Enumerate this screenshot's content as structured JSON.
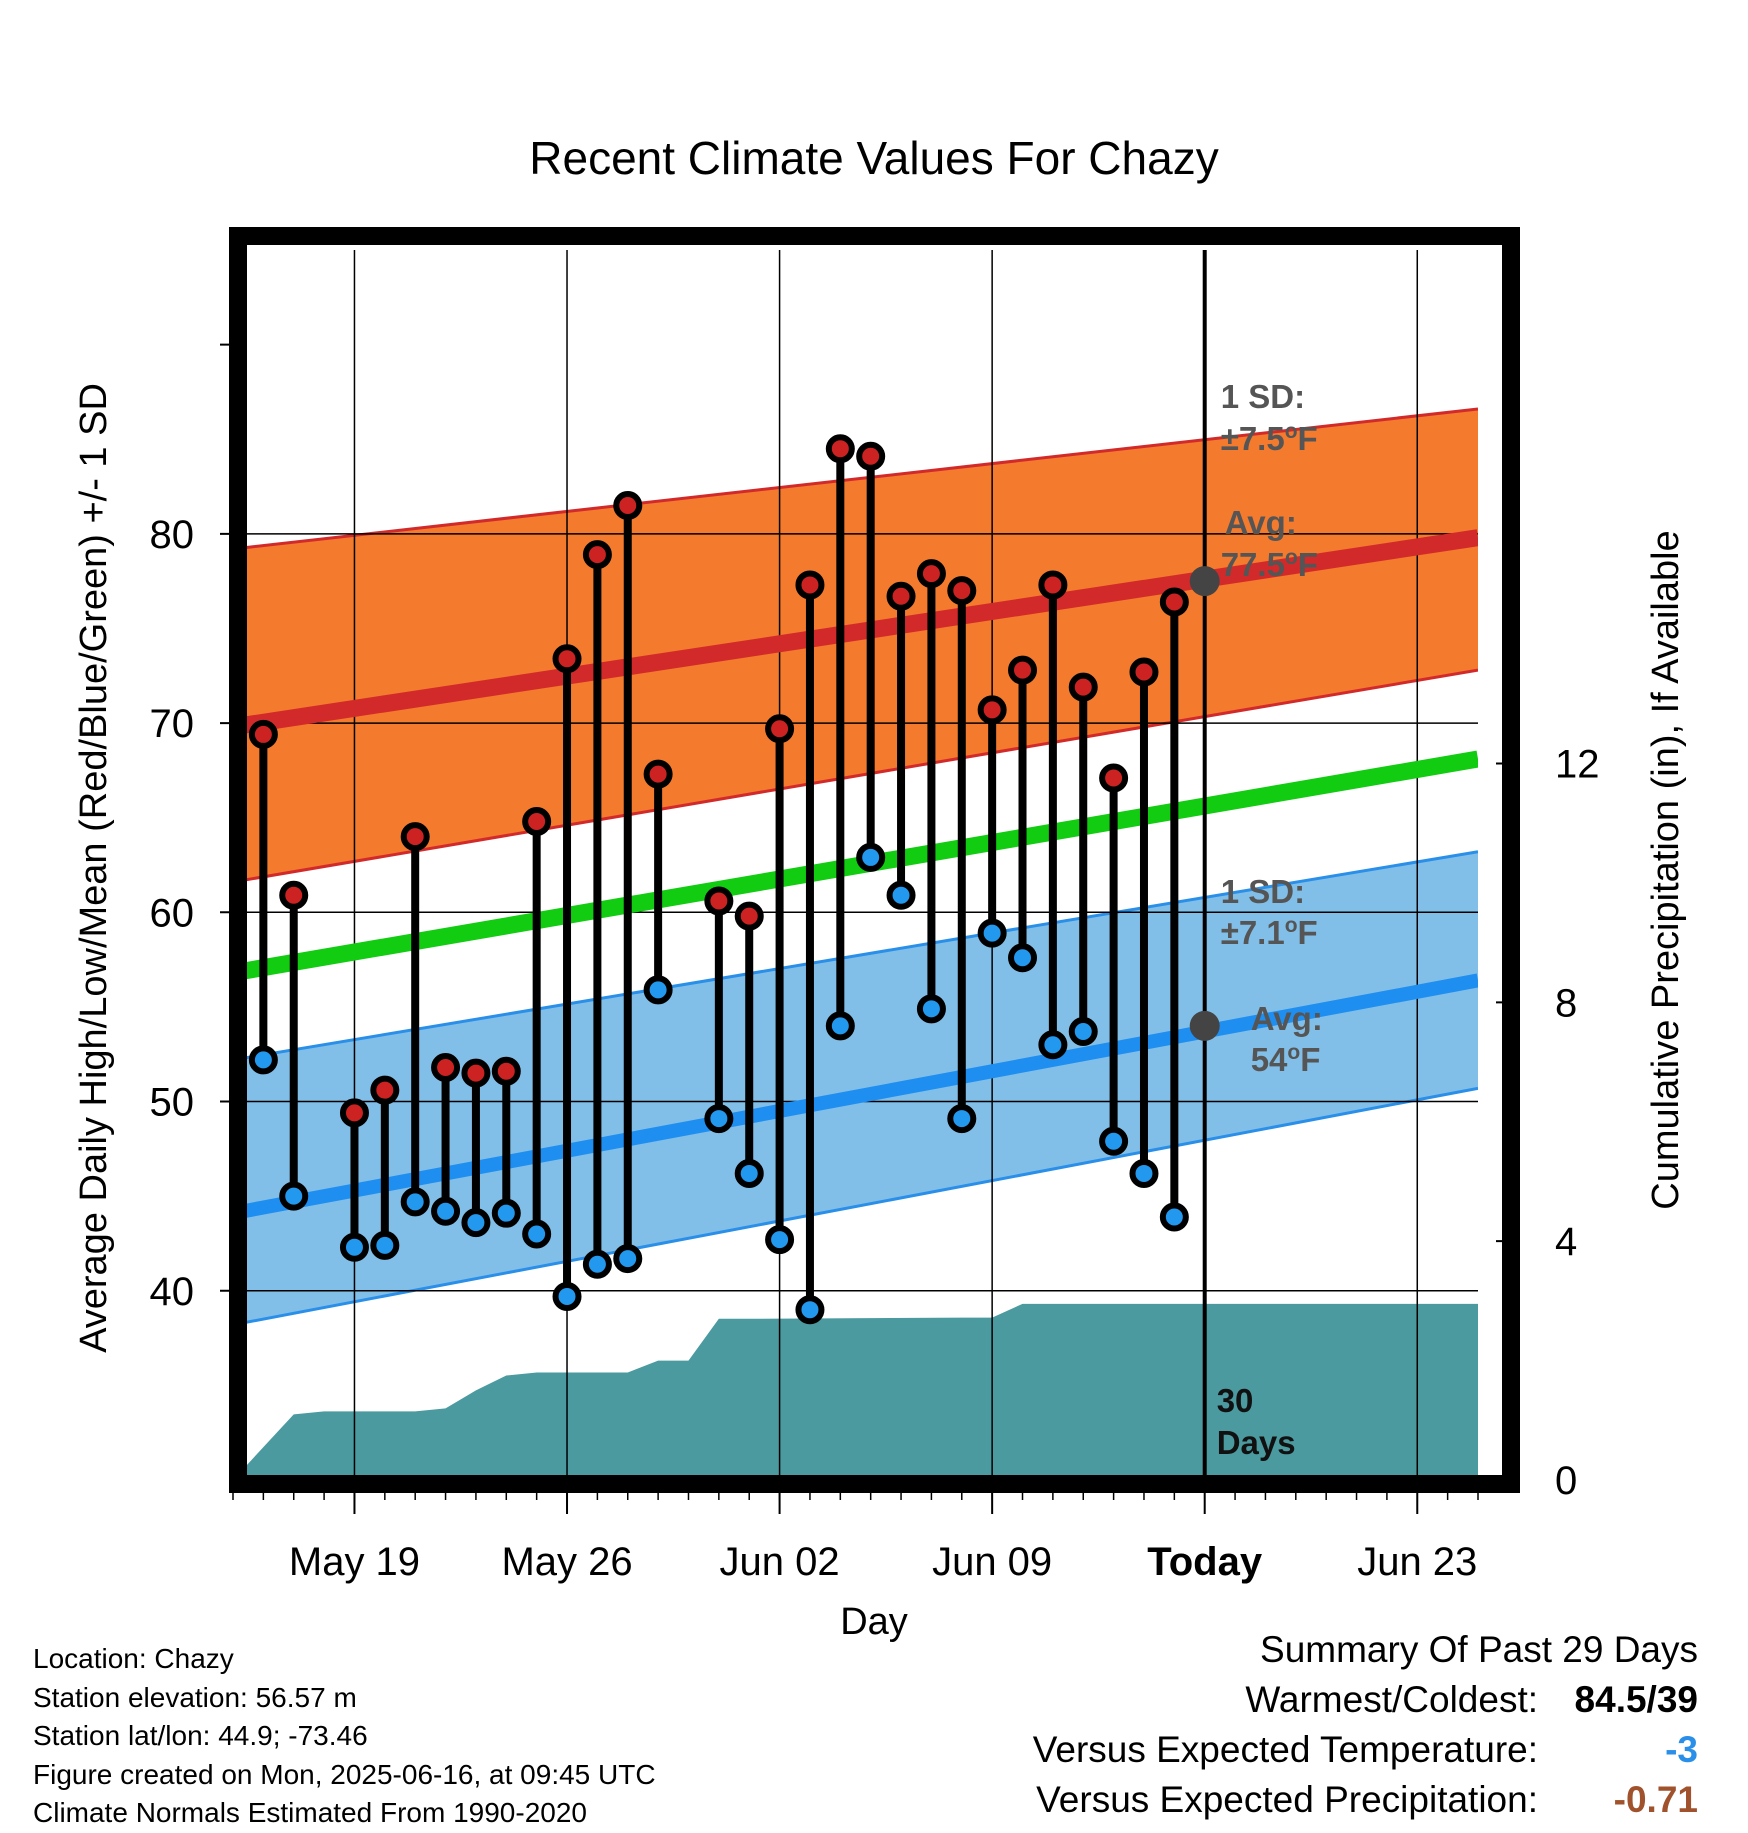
{
  "chart_data": {
    "type": "line",
    "title": "Recent Climate Values For Chazy",
    "xlabel": "Day",
    "ylabel": "Average Daily High/Low/Mean (Red/Blue/Green) +/- 1 SD",
    "y2label": "Cumulative Precipitation (in), If Available",
    "x_tick_labels": [
      "May 19",
      "May 26",
      "Jun 02",
      "Jun 09",
      "Today",
      "Jun 23"
    ],
    "x_tick_dates": [
      "2025-05-19",
      "2025-05-26",
      "2025-06-02",
      "2025-06-09",
      "2025-06-16",
      "2025-06-23"
    ],
    "xlim": [
      "2025-05-15",
      "2025-06-25"
    ],
    "ylim": [
      30,
      95
    ],
    "y_ticks": [
      40,
      50,
      60,
      70,
      80
    ],
    "y2lim": [
      0,
      20.6
    ],
    "y2_ticks": [
      0,
      4,
      8,
      12
    ],
    "grid": true,
    "today_label": "Today",
    "dates": [
      "2025-05-16",
      "2025-05-17",
      "2025-05-18",
      "2025-05-19",
      "2025-05-20",
      "2025-05-21",
      "2025-05-22",
      "2025-05-23",
      "2025-05-24",
      "2025-05-25",
      "2025-05-26",
      "2025-05-27",
      "2025-05-28",
      "2025-05-29",
      "2025-05-30",
      "2025-05-31",
      "2025-06-01",
      "2025-06-02",
      "2025-06-03",
      "2025-06-04",
      "2025-06-05",
      "2025-06-06",
      "2025-06-07",
      "2025-06-08",
      "2025-06-09",
      "2025-06-10",
      "2025-06-11",
      "2025-06-12",
      "2025-06-13",
      "2025-06-14",
      "2025-06-15"
    ],
    "series": [
      {
        "name": "High",
        "color": "#cc2222",
        "values": [
          69.4,
          60.9,
          null,
          49.4,
          50.6,
          64.0,
          51.8,
          51.5,
          51.6,
          64.8,
          73.4,
          78.9,
          81.5,
          67.3,
          null,
          60.6,
          59.8,
          69.7,
          77.3,
          84.5,
          84.1,
          76.7,
          77.9,
          77.0,
          70.7,
          72.8,
          77.3,
          71.9,
          67.1,
          72.7,
          76.4
        ]
      },
      {
        "name": "Low",
        "color": "#2299ee",
        "values": [
          52.2,
          45.0,
          null,
          42.3,
          42.4,
          44.7,
          44.2,
          43.6,
          44.1,
          43.0,
          39.7,
          41.4,
          41.7,
          55.9,
          null,
          49.1,
          46.2,
          42.7,
          39.0,
          54.0,
          62.9,
          60.9,
          54.9,
          49.1,
          58.9,
          57.6,
          53.0,
          53.7,
          47.9,
          46.2,
          43.9
        ]
      }
    ],
    "normals": {
      "dates": [
        "2025-05-15",
        "2025-06-25"
      ],
      "avg_high": [
        69.8,
        79.8
      ],
      "high_upper": [
        79.2,
        86.6
      ],
      "high_lower": [
        61.6,
        72.8
      ],
      "avg_mean": [
        56.8,
        68.1
      ],
      "avg_low": [
        44.1,
        56.4
      ],
      "low_upper": [
        52.2,
        63.2
      ],
      "low_lower": [
        38.2,
        50.7
      ]
    },
    "precip_cumulative": {
      "dates": [
        "2025-05-15",
        "2025-05-16",
        "2025-05-17",
        "2025-05-18",
        "2025-05-19",
        "2025-05-20",
        "2025-05-21",
        "2025-05-22",
        "2025-05-23",
        "2025-05-24",
        "2025-05-25",
        "2025-05-26",
        "2025-05-27",
        "2025-05-28",
        "2025-05-29",
        "2025-05-30",
        "2025-05-31",
        "2025-06-01",
        "2025-06-08",
        "2025-06-09",
        "2025-06-10",
        "2025-06-25"
      ],
      "values": [
        0.0,
        0.55,
        1.1,
        1.15,
        1.15,
        1.15,
        1.15,
        1.2,
        1.5,
        1.75,
        1.8,
        1.8,
        1.8,
        1.8,
        2.0,
        2.0,
        2.7,
        2.7,
        2.72,
        2.72,
        2.95,
        2.95
      ],
      "color": "#4a9aa0"
    },
    "annotations": {
      "high_sd_label": "1 SD:",
      "high_sd_value": "±7.5",
      "high_avg_label": "Avg:",
      "high_avg_value": "77.5",
      "low_sd_label": "1 SD:",
      "low_sd_value": "±7.1",
      "low_avg_label": "Avg:",
      "low_avg_value": "54",
      "deg_unit": "o",
      "f_unit": "F",
      "days_line1": "30",
      "days_line2": "Days"
    }
  },
  "info": {
    "location": "Location: Chazy",
    "elevation": "Station elevation: 56.57 m",
    "latlon": "Station lat/lon: 44.9; -73.46",
    "created": "Figure created on Mon, 2025-06-16, at 09:45 UTC",
    "normals": "Climate Normals Estimated From 1990-2020"
  },
  "summary": {
    "title": "Summary Of Past 29 Days",
    "warm_cold_label": "Warmest/Coldest:",
    "warm_cold_value": "84.5/39",
    "temp_label": "Versus Expected Temperature:",
    "temp_value": "-3",
    "temp_color": "#2a8fe8",
    "precip_label": "Versus Expected Precipitation:",
    "precip_value": "-0.71",
    "precip_color": "#a0522d"
  }
}
